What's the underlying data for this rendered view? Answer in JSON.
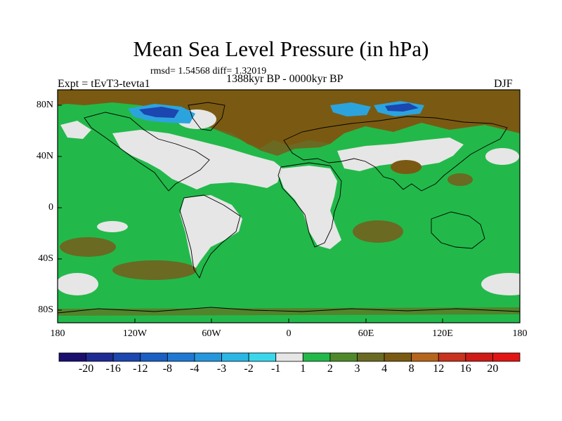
{
  "map": {
    "title": "Mean Sea Level Pressure (in hPa)",
    "stats_line": "rmsd= 1.54568 diff= 1.32019",
    "experiment": "Expt = tEvT3-tevta1",
    "period": "1388kyr BP - 0000kyr BP",
    "season": "DJF",
    "lat_labels": [
      "80N",
      "40N",
      "0",
      "40S",
      "80S"
    ],
    "lon_labels": [
      "180",
      "120W",
      "60W",
      "0",
      "60E",
      "120E",
      "180"
    ]
  },
  "colorbar": {
    "labels": [
      "-20",
      "-16",
      "-12",
      "-8",
      "-4",
      "-3",
      "-2",
      "-1",
      "1",
      "2",
      "3",
      "4",
      "8",
      "12",
      "16",
      "20"
    ],
    "colors": [
      "#1a0f6e",
      "#1f2a93",
      "#1c46b0",
      "#1a5fc4",
      "#1f79d2",
      "#2597dc",
      "#2bb7e6",
      "#3ad7ec",
      "#e6e6e6",
      "#22b94a",
      "#4f8a2a",
      "#6a6a22",
      "#7a5a12",
      "#b5651d",
      "#c8321e",
      "#cf1b15",
      "#e31414"
    ]
  },
  "palette": {
    "green": "#22b94a",
    "light_gray": "#e6e6e6",
    "olive": "#6a6a22",
    "brown": "#7a5a12",
    "ice_blue": "#2ba4de",
    "deep_blue": "#1c46b0"
  }
}
